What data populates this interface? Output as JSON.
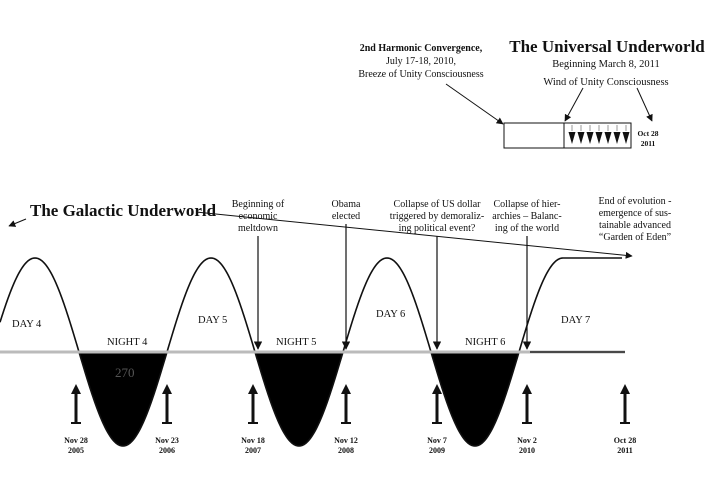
{
  "universal": {
    "title": "The Universal Underworld",
    "subtitle": "Beginning March 8, 2011",
    "wind": "Wind of Unity Consciousness",
    "end_date": [
      "Oct 28",
      "2011"
    ]
  },
  "harmonic": {
    "line1": "2nd Harmonic Convergence,",
    "line2": "July 17-18, 2010,",
    "line3": "Breeze of Unity Consciousness"
  },
  "galactic": {
    "title": "The Galactic Underworld"
  },
  "annotations": {
    "meltdown": [
      "Beginning of",
      "economic",
      "meltdown"
    ],
    "obama": [
      "Obama",
      "elected"
    ],
    "dollar": [
      "Collapse of US dollar",
      "triggered by demoraliz-",
      "ing political event?"
    ],
    "hierarchies": [
      "Collapse of hier-",
      "archies – Balanc-",
      "ing of the world"
    ],
    "evolution": [
      "End of evolution -",
      "emergence of sus-",
      "tainable advanced",
      "“Garden of Eden”"
    ]
  },
  "periods": {
    "day4": "DAY 4",
    "night4": "NIGHT  4",
    "day5": "DAY 5",
    "night5": "NIGHT  5",
    "day6": "DAY 6",
    "night6": "NIGHT  6",
    "day7": "DAY 7"
  },
  "ghost_text": "270",
  "dates": [
    [
      "Nov 28",
      "2005"
    ],
    [
      "Nov 23",
      "2006"
    ],
    [
      "Nov 18",
      "2007"
    ],
    [
      "Nov 12",
      "2008"
    ],
    [
      "Nov 7",
      "2009"
    ],
    [
      "Nov 2",
      "2010"
    ],
    [
      "Oct 28",
      "2011"
    ]
  ]
}
